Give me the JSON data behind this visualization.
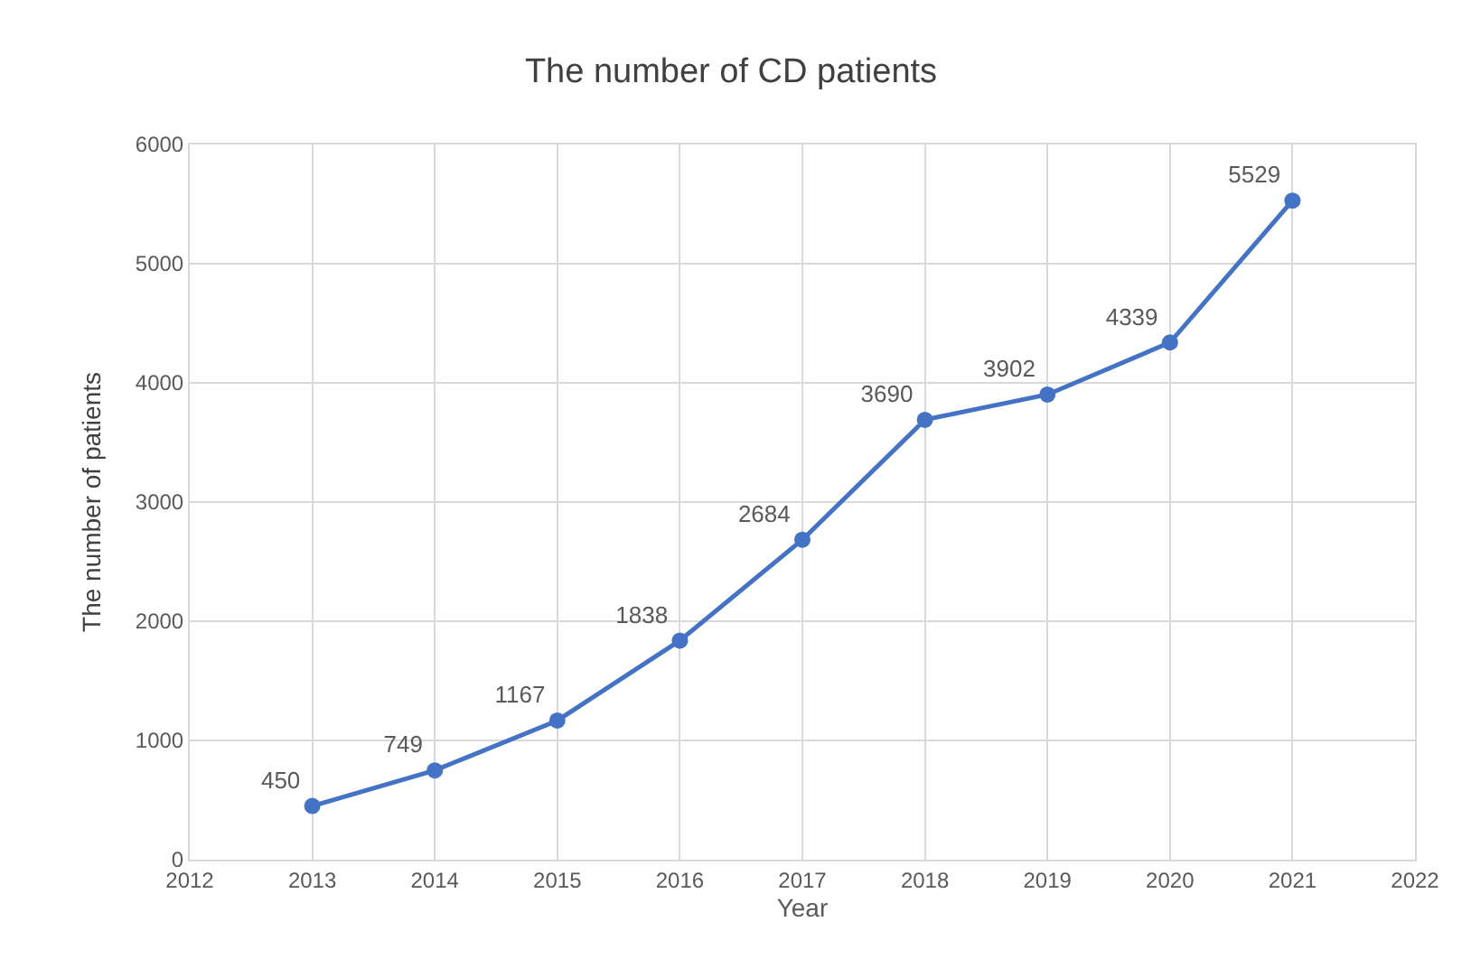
{
  "chart_data": {
    "type": "line",
    "title": "The number of CD patients",
    "xlabel": "Year",
    "ylabel": "The number of patients",
    "x": [
      2013,
      2014,
      2015,
      2016,
      2017,
      2018,
      2019,
      2020,
      2021
    ],
    "series": [
      {
        "color": "#4472c4",
        "values": [
          450,
          749,
          1167,
          1838,
          2684,
          3690,
          3902,
          4339,
          5529
        ]
      }
    ],
    "xlim": [
      2012,
      2022
    ],
    "xticks": [
      2012,
      2013,
      2014,
      2015,
      2016,
      2017,
      2018,
      2019,
      2020,
      2021,
      2022
    ],
    "ylim": [
      0,
      6000
    ],
    "yticks": [
      0,
      1000,
      2000,
      3000,
      4000,
      5000,
      6000
    ],
    "grid": true,
    "marker": "circle",
    "line_style": "solid",
    "data_labels": true
  }
}
